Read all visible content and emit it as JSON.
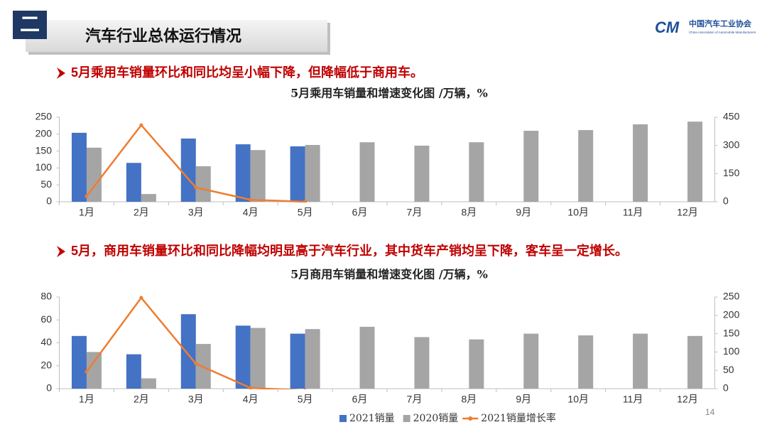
{
  "header": {
    "number": "二",
    "title": "汽车行业总体运行情况"
  },
  "logo": {
    "mark": "CM",
    "name": "中国汽车工业协会",
    "english": "China Association of Automobile Manufacturers"
  },
  "bullets": [
    "5月乘用车销量环比和同比均呈小幅下降，但降幅低于商用车。",
    "5月，商用车销量环比和同比降幅均明显高于汽车行业，其中货车产销均呈下降，客车呈一定增长。"
  ],
  "page_number": 14,
  "chart_data": [
    {
      "type": "combo",
      "title": "5月乘用车销量和增速变化图  /万辆，%",
      "categories": [
        "1月",
        "2月",
        "3月",
        "4月",
        "5月",
        "6月",
        "7月",
        "8月",
        "9月",
        "10月",
        "11月",
        "12月"
      ],
      "series": [
        {
          "name": "2021销量",
          "type": "bar",
          "color": "#4472c4",
          "values": [
            204,
            115,
            187,
            170,
            164,
            null,
            null,
            null,
            null,
            null,
            null,
            null
          ]
        },
        {
          "name": "2020销量",
          "type": "bar",
          "color": "#a5a5a5",
          "values": [
            160,
            23,
            105,
            153,
            168,
            176,
            166,
            176,
            210,
            212,
            229,
            237
          ]
        },
        {
          "name": "2021销量增长率",
          "type": "line",
          "axis": "y2",
          "color": "#ed7d31",
          "values": [
            30,
            408,
            76,
            11,
            0,
            null,
            null,
            null,
            null,
            null,
            null,
            null
          ]
        }
      ],
      "ylim": [
        0,
        250
      ],
      "yticks": [
        0,
        50,
        100,
        150,
        200,
        250
      ],
      "y2lim": [
        0,
        450
      ],
      "y2ticks": [
        0,
        150,
        300,
        450
      ],
      "legend": false
    },
    {
      "type": "combo",
      "title": "5月商用车销量和增速变化图  /万辆，%",
      "categories": [
        "1月",
        "2月",
        "3月",
        "4月",
        "5月",
        "6月",
        "7月",
        "8月",
        "9月",
        "10月",
        "11月",
        "12月"
      ],
      "series": [
        {
          "name": "2021销量",
          "type": "bar",
          "color": "#4472c4",
          "values": [
            46,
            30,
            65,
            55,
            48,
            null,
            null,
            null,
            null,
            null,
            null,
            null
          ]
        },
        {
          "name": "2020销量",
          "type": "bar",
          "color": "#a5a5a5",
          "values": [
            32,
            9,
            39,
            53,
            52,
            54,
            45,
            43,
            48,
            46.5,
            48,
            46
          ]
        },
        {
          "name": "2021销量增长率",
          "type": "line",
          "axis": "y2",
          "color": "#ed7d31",
          "values": [
            46,
            248,
            68,
            2,
            -5,
            null,
            null,
            null,
            null,
            null,
            null,
            null
          ]
        }
      ],
      "ylim": [
        0,
        80
      ],
      "yticks": [
        0,
        20,
        40,
        60,
        80
      ],
      "y2lim": [
        0,
        250
      ],
      "y2ticks": [
        0,
        50,
        100,
        150,
        200,
        250
      ],
      "legend": "bottom"
    }
  ]
}
